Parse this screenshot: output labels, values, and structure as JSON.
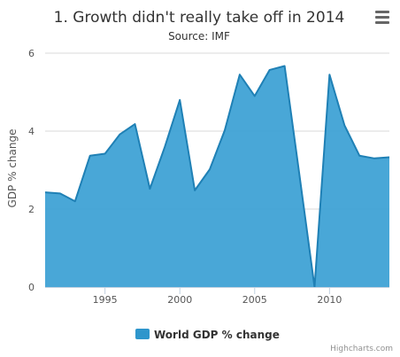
{
  "chart_data": {
    "type": "area",
    "title": "1. Growth didn't really take off in 2014",
    "subtitle": "Source: IMF",
    "xlabel": "",
    "ylabel": "GDP % change",
    "xlim": [
      1991,
      2014
    ],
    "ylim": [
      0,
      6
    ],
    "x_ticks": [
      1995,
      2000,
      2005,
      2010
    ],
    "y_ticks": [
      0,
      2,
      4,
      6
    ],
    "grid": true,
    "legend": "bottom-center",
    "series": [
      {
        "name": "World GDP % change",
        "color": "#2e96cc",
        "x": [
          1991,
          1992,
          1993,
          1994,
          1995,
          1996,
          1997,
          1998,
          1999,
          2000,
          2001,
          2002,
          2003,
          2004,
          2005,
          2006,
          2007,
          2008,
          2009,
          2010,
          2011,
          2012,
          2013,
          2014
        ],
        "values": [
          2.43,
          2.4,
          2.2,
          3.37,
          3.42,
          3.92,
          4.18,
          2.52,
          3.6,
          4.8,
          2.48,
          3.02,
          4.02,
          5.45,
          4.9,
          5.57,
          5.67,
          2.85,
          0.0,
          5.45,
          4.15,
          3.37,
          3.3,
          3.33
        ]
      }
    ]
  },
  "credits": "Highcharts.com",
  "menu_icon": "hamburger-menu-icon"
}
